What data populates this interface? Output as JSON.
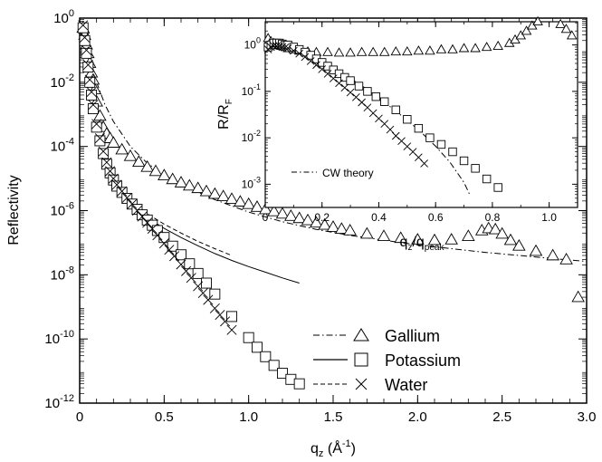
{
  "chart_data": [
    {
      "type": "scatter",
      "xlabel_base": "q",
      "xlabel_sub": "z",
      "xlabel_unit_open": " (Å",
      "xlabel_unit_sup": "-1",
      "xlabel_unit_close": ")",
      "ylabel": "Reflectivity",
      "xlim": [
        0,
        3.0
      ],
      "ylim_log10": [
        -12,
        0
      ],
      "yscale": "log",
      "x_ticks": [
        "0",
        "0.5",
        "1.0",
        "1.5",
        "2.0",
        "2.5",
        "3.0"
      ],
      "y_ticks": [
        {
          "base": "10",
          "exp": "0"
        },
        {
          "base": "10",
          "exp": "-2"
        },
        {
          "base": "10",
          "exp": "-4"
        },
        {
          "base": "10",
          "exp": "-6"
        },
        {
          "base": "10",
          "exp": "-8"
        },
        {
          "base": "10",
          "exp": "-10"
        },
        {
          "base": "10",
          "exp": "-12"
        }
      ],
      "legend_position": "bottom-right",
      "series": [
        {
          "name": "Gallium",
          "marker": "triangle",
          "x": [
            0.02,
            0.03,
            0.04,
            0.05,
            0.06,
            0.07,
            0.08,
            0.09,
            0.1,
            0.12,
            0.14,
            0.16,
            0.18,
            0.2,
            0.25,
            0.3,
            0.35,
            0.4,
            0.45,
            0.5,
            0.55,
            0.6,
            0.65,
            0.7,
            0.75,
            0.8,
            0.85,
            0.9,
            0.95,
            1.0,
            1.05,
            1.1,
            1.15,
            1.2,
            1.25,
            1.3,
            1.35,
            1.4,
            1.45,
            1.5,
            1.55,
            1.6,
            1.7,
            1.8,
            1.9,
            2.0,
            2.1,
            2.2,
            2.3,
            2.38,
            2.42,
            2.46,
            2.5,
            2.55,
            2.6,
            2.7,
            2.8,
            2.88,
            2.95
          ],
          "y": [
            0.5,
            0.3,
            0.15,
            0.08,
            0.04,
            0.02,
            0.012,
            0.006,
            0.0025,
            0.0009,
            0.0004,
            0.00025,
            0.00018,
            0.00013,
            8e-05,
            5e-05,
            3.3e-05,
            2.3e-05,
            1.7e-05,
            1.25e-05,
            9.5e-06,
            7.5e-06,
            6e-06,
            5e-06,
            4e-06,
            3.3e-06,
            2.8e-06,
            2.3e-06,
            1.9e-06,
            1.6e-06,
            1.3e-06,
            1.1e-06,
            9.5e-07,
            8e-07,
            6.8e-07,
            5.8e-07,
            5e-07,
            4.2e-07,
            3.6e-07,
            3.1e-07,
            2.7e-07,
            2.4e-07,
            1.9e-07,
            1.6e-07,
            1.4e-07,
            1.25e-07,
            1.2e-07,
            1.25e-07,
            1.6e-07,
            2.4e-07,
            2.8e-07,
            2.6e-07,
            1.9e-07,
            1.2e-07,
            8e-08,
            5.5e-08,
            4e-08,
            3e-08,
            2e-09
          ]
        },
        {
          "name": "Potassium",
          "marker": "square",
          "x": [
            0.02,
            0.03,
            0.04,
            0.05,
            0.06,
            0.07,
            0.08,
            0.1,
            0.12,
            0.14,
            0.16,
            0.18,
            0.2,
            0.22,
            0.25,
            0.28,
            0.31,
            0.34,
            0.37,
            0.4,
            0.43,
            0.46,
            0.5,
            0.55,
            0.6,
            0.65,
            0.7,
            0.75,
            0.8,
            0.9,
            1.0,
            1.05,
            1.1,
            1.15,
            1.2,
            1.25,
            1.3
          ],
          "y": [
            0.5,
            0.2,
            0.08,
            0.03,
            0.01,
            0.004,
            0.0015,
            0.0004,
            0.00015,
            6e-05,
            2.8e-05,
            1.5e-05,
            9e-06,
            5.8e-06,
            3.7e-06,
            2.4e-06,
            1.6e-06,
            1.1e-06,
            7.4e-07,
            5.1e-07,
            3.5e-07,
            2.4e-07,
            1.45e-07,
            7.8e-08,
            4.2e-08,
            2.2e-08,
            1.1e-08,
            5.5e-09,
            2.5e-09,
            5e-10,
            1.1e-10,
            5.5e-11,
            2.8e-11,
            1.5e-11,
            8.5e-12,
            5.5e-12,
            4e-12
          ]
        },
        {
          "name": "Water",
          "marker": "cross",
          "x": [
            0.02,
            0.03,
            0.04,
            0.05,
            0.06,
            0.07,
            0.08,
            0.1,
            0.12,
            0.14,
            0.16,
            0.18,
            0.2,
            0.22,
            0.25,
            0.28,
            0.31,
            0.34,
            0.37,
            0.4,
            0.43,
            0.46,
            0.5,
            0.53,
            0.56,
            0.6,
            0.63,
            0.66,
            0.7,
            0.73,
            0.76,
            0.8,
            0.83,
            0.86,
            0.9
          ],
          "y": [
            0.6,
            0.25,
            0.1,
            0.035,
            0.012,
            0.005,
            0.002,
            0.0005,
            0.00018,
            7e-05,
            3.2e-05,
            1.7e-05,
            1e-05,
            6.4e-06,
            4e-06,
            2.5e-06,
            1.6e-06,
            1e-06,
            6.5e-07,
            4.2e-07,
            2.7e-07,
            1.7e-07,
            9.5e-08,
            6e-08,
            3.8e-08,
            2.1e-08,
            1.3e-08,
            8e-09,
            4.4e-09,
            2.7e-09,
            1.65e-09,
            9e-10,
            5.6e-10,
            3.5e-10,
            1.9e-10
          ]
        }
      ],
      "theory_curves": [
        {
          "series": "Gallium",
          "style": "dashdot",
          "x": [
            0.1,
            0.15,
            0.2,
            0.3,
            0.4,
            0.5,
            0.6,
            0.8,
            1.0,
            1.2,
            1.4,
            1.6,
            1.8,
            2.0,
            2.2,
            2.4,
            2.6,
            2.8,
            3.0
          ],
          "y": [
            0.01,
            0.002,
            0.0006,
            0.0001,
            3e-05,
            1.3e-05,
            6.5e-06,
            2.2e-06,
            9e-07,
            4.5e-07,
            2.6e-07,
            1.7e-07,
            1.2e-07,
            8.5e-08,
            6.5e-08,
            5e-08,
            4e-08,
            3.2e-08,
            2.6e-08
          ]
        },
        {
          "series": "Potassium",
          "style": "solid",
          "x": [
            0.3,
            0.4,
            0.5,
            0.6,
            0.7,
            0.8,
            0.9,
            1.0,
            1.1,
            1.2,
            1.3
          ],
          "y": [
            1.5e-06,
            6e-07,
            2.8e-07,
            1.45e-07,
            8e-08,
            4.6e-08,
            2.8e-08,
            1.8e-08,
            1.2e-08,
            8e-09,
            5.5e-09
          ]
        },
        {
          "series": "Water",
          "style": "dashed",
          "x": [
            0.3,
            0.4,
            0.5,
            0.6,
            0.7,
            0.8,
            0.9
          ],
          "y": [
            1.9e-06,
            8e-07,
            3.8e-07,
            2e-07,
            1.1e-07,
            6.5e-08,
            4e-08
          ]
        }
      ]
    },
    {
      "type": "scatter",
      "inset": true,
      "xlabel_base": "q",
      "xlabel_sub1": "z",
      "xlabel_sep": "/q",
      "xlabel_sub2": "peak",
      "ylabel_base": "R/R",
      "ylabel_sub": "F",
      "xlim": [
        0,
        1.1
      ],
      "ylim_log10": [
        -3.5,
        0.5
      ],
      "yscale": "log",
      "x_ticks": [
        "0",
        "0.2",
        "0.4",
        "0.6",
        "0.8",
        "1.0"
      ],
      "y_ticks": [
        {
          "base": "10",
          "exp": "0"
        },
        {
          "base": "10",
          "exp": "-1"
        },
        {
          "base": "10",
          "exp": "-2"
        },
        {
          "base": "10",
          "exp": "-3"
        }
      ],
      "annotation": "CW theory",
      "series": [
        {
          "name": "Gallium",
          "marker": "triangle",
          "x": [
            0.01,
            0.02,
            0.03,
            0.04,
            0.05,
            0.06,
            0.07,
            0.08,
            0.1,
            0.12,
            0.15,
            0.18,
            0.22,
            0.26,
            0.3,
            0.34,
            0.38,
            0.42,
            0.46,
            0.5,
            0.54,
            0.58,
            0.62,
            0.66,
            0.7,
            0.74,
            0.78,
            0.82,
            0.86,
            0.88,
            0.9,
            0.92,
            0.94,
            0.96,
            0.98,
            1.0,
            1.02,
            1.04,
            1.06,
            1.08
          ],
          "y": [
            1.4,
            1.2,
            1.1,
            1.0,
            1.0,
            0.95,
            0.9,
            0.85,
            0.8,
            0.75,
            0.72,
            0.7,
            0.7,
            0.68,
            0.68,
            0.7,
            0.7,
            0.7,
            0.72,
            0.72,
            0.75,
            0.75,
            0.8,
            0.8,
            0.85,
            0.85,
            0.9,
            0.95,
            1.1,
            1.3,
            1.6,
            2.0,
            2.6,
            3.2,
            3.6,
            3.8,
            3.5,
            2.8,
            2.2,
            1.6
          ]
        },
        {
          "name": "Potassium",
          "marker": "square",
          "x": [
            0.01,
            0.02,
            0.03,
            0.04,
            0.05,
            0.06,
            0.07,
            0.08,
            0.1,
            0.12,
            0.14,
            0.16,
            0.18,
            0.2,
            0.22,
            0.24,
            0.26,
            0.28,
            0.3,
            0.33,
            0.36,
            0.39,
            0.42,
            0.46,
            0.5,
            0.54,
            0.58,
            0.62,
            0.66,
            0.7,
            0.74,
            0.78,
            0.82
          ],
          "y": [
            0.9,
            1.0,
            1.1,
            1.1,
            1.1,
            1.05,
            1.0,
            1.0,
            0.9,
            0.8,
            0.7,
            0.6,
            0.5,
            0.42,
            0.35,
            0.29,
            0.24,
            0.2,
            0.17,
            0.13,
            0.1,
            0.077,
            0.06,
            0.04,
            0.025,
            0.016,
            0.01,
            0.0072,
            0.005,
            0.0032,
            0.0022,
            0.0013,
            0.00085
          ]
        },
        {
          "name": "Water",
          "marker": "cross",
          "x": [
            0.01,
            0.02,
            0.03,
            0.04,
            0.05,
            0.06,
            0.07,
            0.08,
            0.1,
            0.12,
            0.14,
            0.16,
            0.18,
            0.2,
            0.22,
            0.24,
            0.26,
            0.28,
            0.3,
            0.32,
            0.34,
            0.36,
            0.38,
            0.4,
            0.42,
            0.44,
            0.46,
            0.48,
            0.5,
            0.52,
            0.54,
            0.56
          ],
          "y": [
            0.8,
            0.9,
            0.95,
            0.95,
            0.95,
            0.9,
            0.88,
            0.85,
            0.75,
            0.65,
            0.55,
            0.45,
            0.37,
            0.3,
            0.24,
            0.19,
            0.15,
            0.12,
            0.095,
            0.075,
            0.058,
            0.045,
            0.034,
            0.026,
            0.02,
            0.015,
            0.011,
            0.0085,
            0.0065,
            0.005,
            0.0038,
            0.0028
          ]
        }
      ],
      "theory_curves": [
        {
          "style": "dashdot",
          "x": [
            0.05,
            0.1,
            0.15,
            0.2,
            0.25,
            0.3,
            0.35,
            0.4,
            0.45,
            0.5,
            0.55,
            0.6,
            0.65,
            0.7,
            0.72
          ],
          "y": [
            1.0,
            0.85,
            0.65,
            0.45,
            0.3,
            0.19,
            0.12,
            0.072,
            0.042,
            0.024,
            0.013,
            0.0066,
            0.003,
            0.0011,
            0.0006
          ]
        }
      ]
    }
  ],
  "legend": {
    "items": [
      {
        "name": "Gallium",
        "line": "dashdot",
        "marker": "triangle"
      },
      {
        "name": "Potassium",
        "line": "solid",
        "marker": "square"
      },
      {
        "name": "Water",
        "line": "dashed",
        "marker": "cross"
      }
    ]
  }
}
